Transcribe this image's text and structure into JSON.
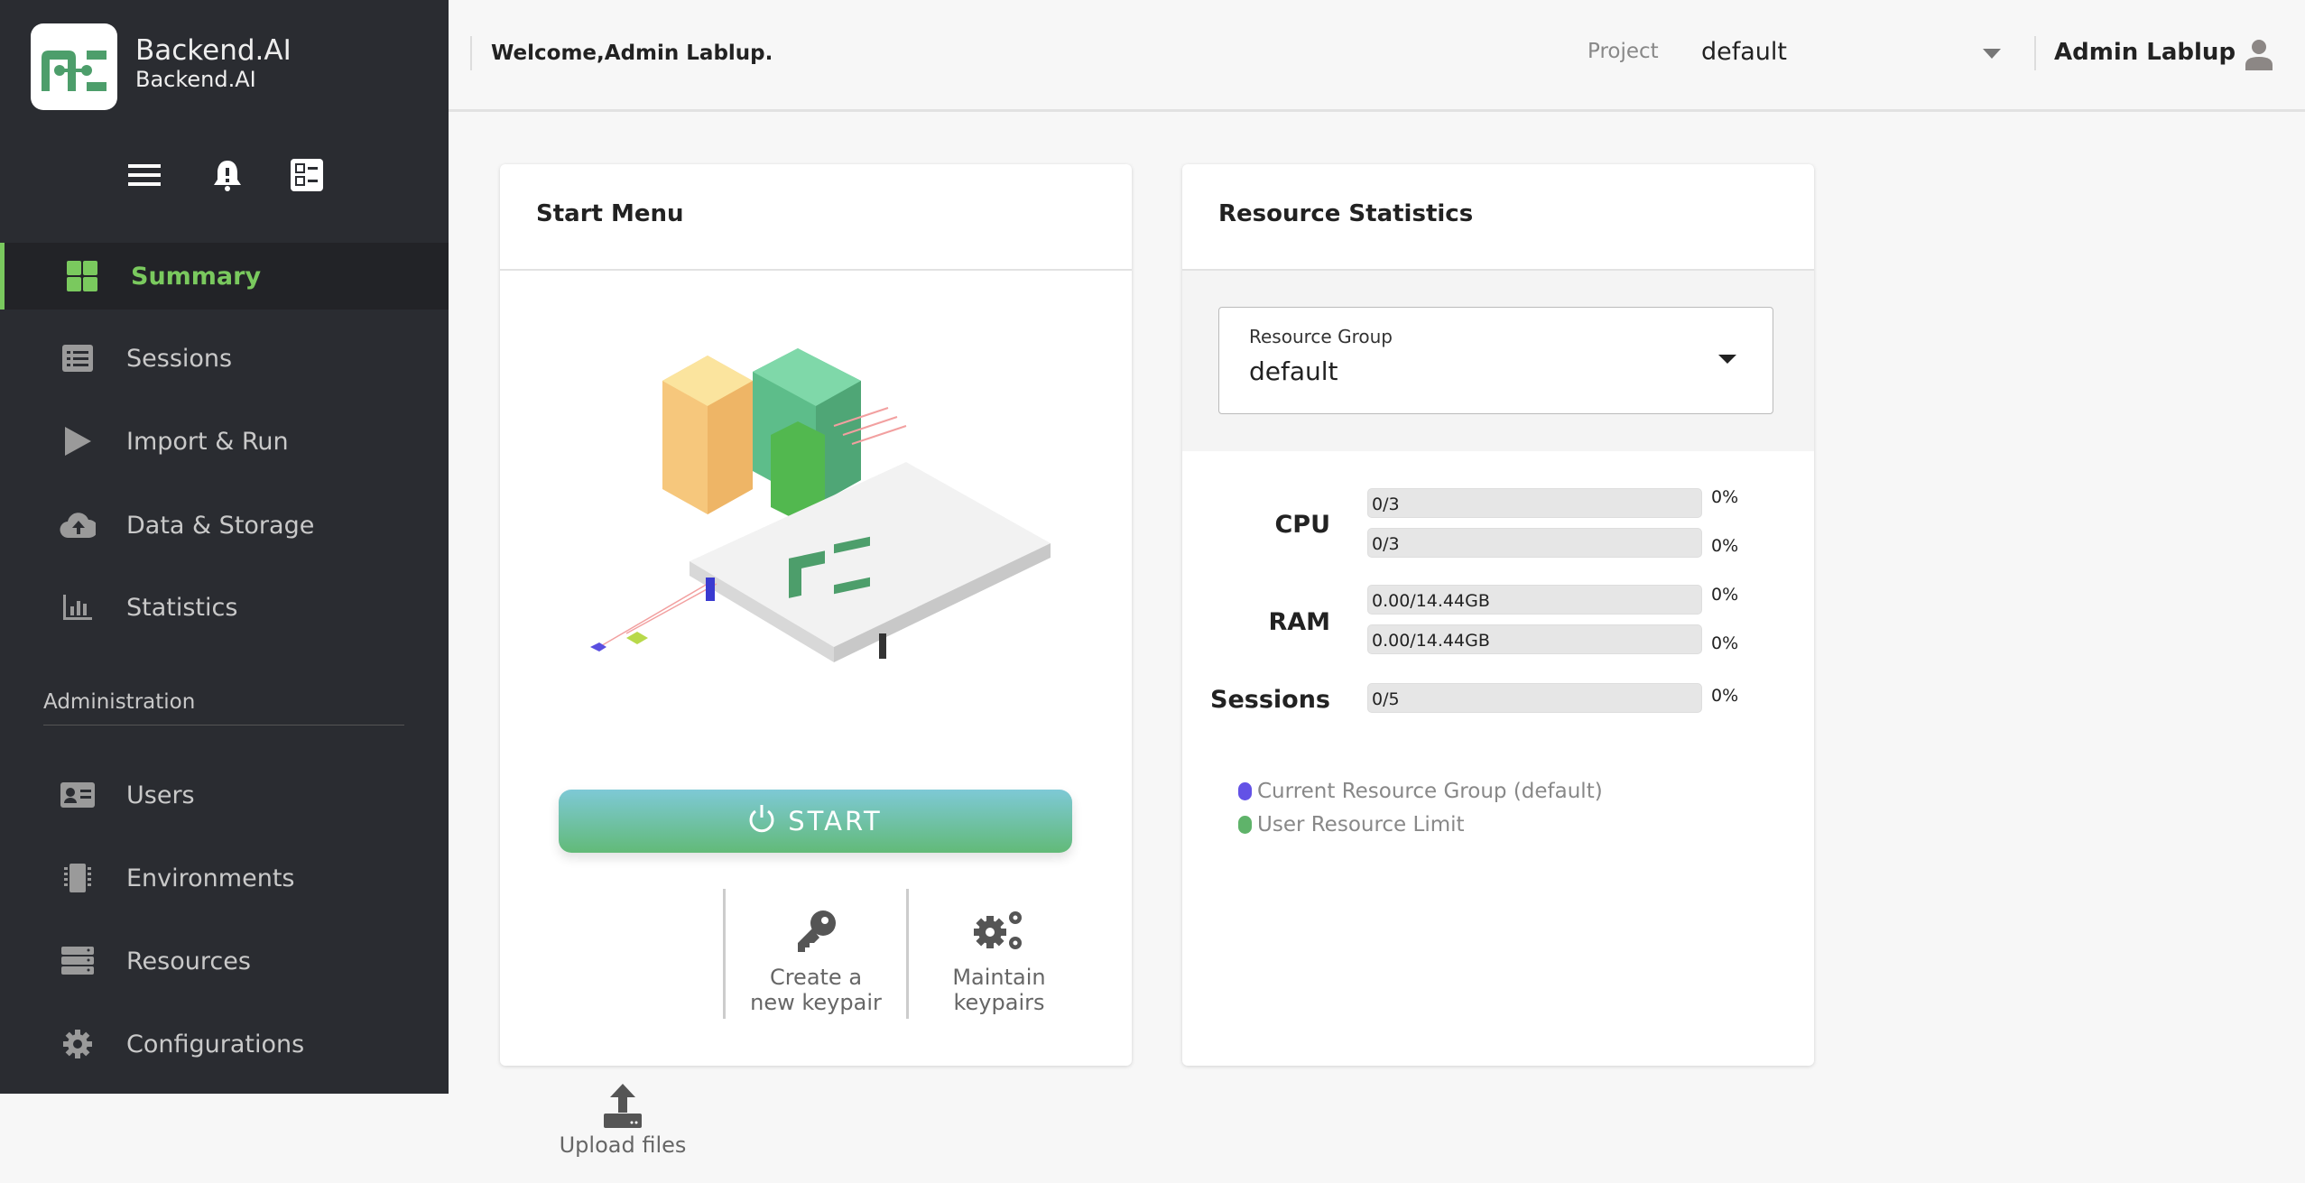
{
  "brand": {
    "title": "Backend.AI",
    "subtitle": "Backend.AI",
    "accent": "#7ac95e"
  },
  "sidebar": {
    "items": [
      {
        "label": "Summary",
        "icon": "dashboard-icon",
        "active": true
      },
      {
        "label": "Sessions",
        "icon": "list-icon"
      },
      {
        "label": "Import & Run",
        "icon": "play-icon"
      },
      {
        "label": "Data & Storage",
        "icon": "cloud-upload-icon"
      },
      {
        "label": "Statistics",
        "icon": "bar-chart-icon"
      }
    ],
    "admin_heading": "Administration",
    "admin_items": [
      {
        "label": "Users",
        "icon": "id-card-icon"
      },
      {
        "label": "Environments",
        "icon": "chip-icon"
      },
      {
        "label": "Resources",
        "icon": "server-icon"
      },
      {
        "label": "Configurations",
        "icon": "gear-icon"
      }
    ]
  },
  "header": {
    "welcome": "Welcome,Admin Lablup.",
    "project_label": "Project",
    "project_value": "default",
    "user_name": "Admin Lablup"
  },
  "start_menu": {
    "title": "Start Menu",
    "start_label": "START",
    "actions": [
      {
        "line1": "Upload files",
        "line2": "",
        "icon": "upload-icon"
      },
      {
        "line1": "Create a",
        "line2": "new keypair",
        "icon": "key-icon"
      },
      {
        "line1": "Maintain",
        "line2": "keypairs",
        "icon": "gears-icon"
      }
    ]
  },
  "resource_stats": {
    "title": "Resource Statistics",
    "group_label": "Resource Group",
    "group_value": "default",
    "cpu": {
      "label": "CPU",
      "rows": [
        {
          "text": "0/3",
          "pct": "0%"
        },
        {
          "text": "0/3",
          "pct": "0%"
        }
      ]
    },
    "ram": {
      "label": "RAM",
      "rows": [
        {
          "text": "0.00/14.44GB",
          "pct": "0%"
        },
        {
          "text": "0.00/14.44GB",
          "pct": "0%"
        }
      ]
    },
    "sessions": {
      "label": "Sessions",
      "rows": [
        {
          "text": "0/5",
          "pct": "0%"
        }
      ]
    },
    "legend": [
      {
        "label": "Current Resource Group (default)",
        "color": "#6352e6"
      },
      {
        "label": "User Resource Limit",
        "color": "#5fb36a"
      }
    ]
  }
}
